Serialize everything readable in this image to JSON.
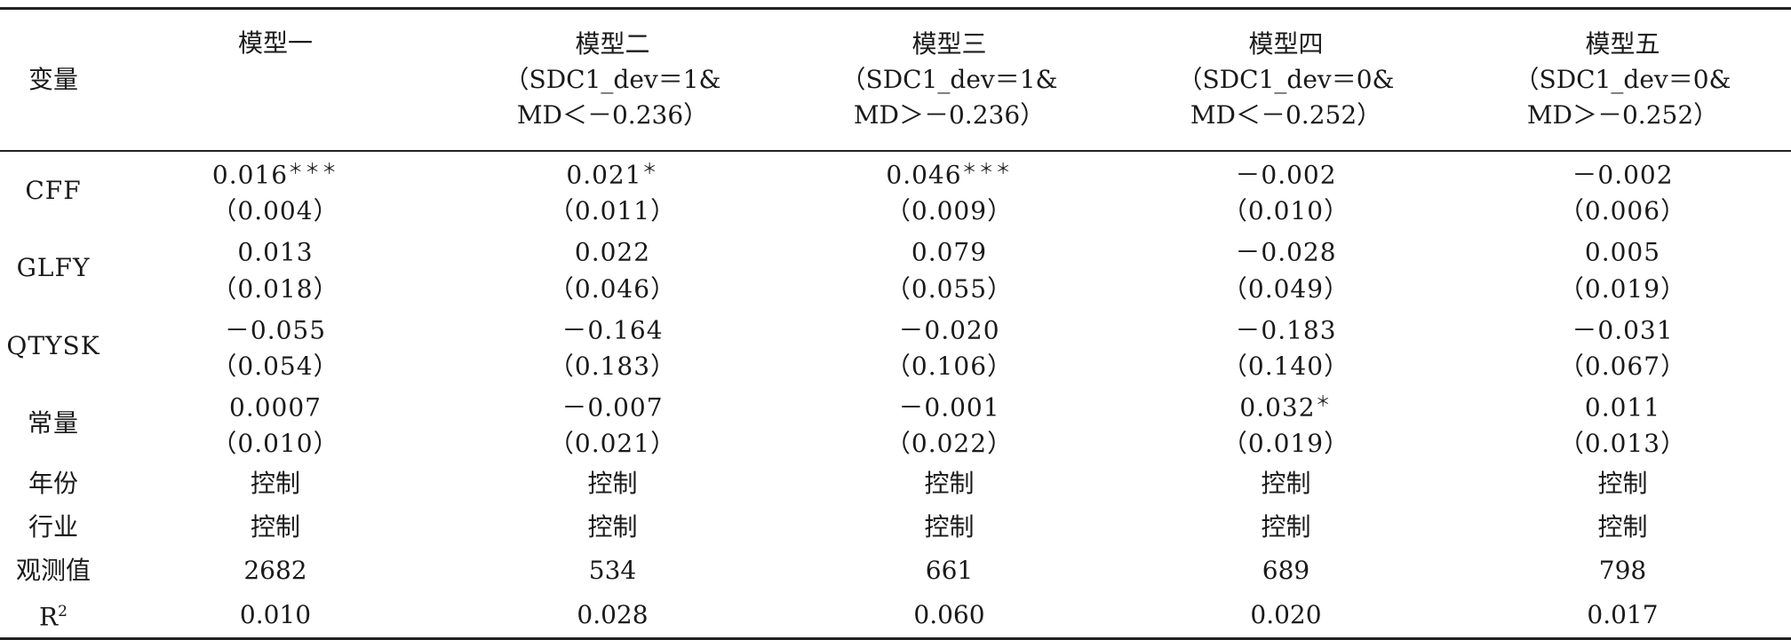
{
  "table": {
    "header": {
      "variable_label": "变量",
      "models": [
        {
          "line1": "模型一",
          "line2": "",
          "line3": ""
        },
        {
          "line1": "模型二",
          "line2": "（SDC1_dev＝1&",
          "line3": "MD＜－0.236）"
        },
        {
          "line1": "模型三",
          "line2": "（SDC1_dev＝1&",
          "line3": "MD＞－0.236）"
        },
        {
          "line1": "模型四",
          "line2": "（SDC1_dev＝0&",
          "line3": "MD＜－0.252）"
        },
        {
          "line1": "模型五",
          "line2": "（SDC1_dev＝0&",
          "line3": "MD＞－0.252）"
        }
      ]
    },
    "variables": [
      {
        "name": "CFF",
        "coefs": [
          {
            "v": "0.016",
            "sig": "＊＊＊"
          },
          {
            "v": "0.021",
            "sig": "＊"
          },
          {
            "v": "0.046",
            "sig": "＊＊＊"
          },
          {
            "v": "－0.002",
            "sig": ""
          },
          {
            "v": "－0.002",
            "sig": ""
          }
        ],
        "ses": [
          "（0.004）",
          "（0.011）",
          "（0.009）",
          "（0.010）",
          "（0.006）"
        ]
      },
      {
        "name": "GLFY",
        "coefs": [
          {
            "v": "0.013",
            "sig": ""
          },
          {
            "v": "0.022",
            "sig": ""
          },
          {
            "v": "0.079",
            "sig": ""
          },
          {
            "v": "－0.028",
            "sig": ""
          },
          {
            "v": "0.005",
            "sig": ""
          }
        ],
        "ses": [
          "（0.018）",
          "（0.046）",
          "（0.055）",
          "（0.049）",
          "（0.019）"
        ]
      },
      {
        "name": "QTYSK",
        "coefs": [
          {
            "v": "－0.055",
            "sig": ""
          },
          {
            "v": "－0.164",
            "sig": ""
          },
          {
            "v": "－0.020",
            "sig": ""
          },
          {
            "v": "－0.183",
            "sig": ""
          },
          {
            "v": "－0.031",
            "sig": ""
          }
        ],
        "ses": [
          "（0.054）",
          "（0.183）",
          "（0.106）",
          "（0.140）",
          "（0.067）"
        ]
      },
      {
        "name": "常量",
        "coefs": [
          {
            "v": "0.0007",
            "sig": ""
          },
          {
            "v": "－0.007",
            "sig": ""
          },
          {
            "v": "－0.001",
            "sig": ""
          },
          {
            "v": "0.032",
            "sig": "＊"
          },
          {
            "v": "0.011",
            "sig": ""
          }
        ],
        "ses": [
          "（0.010）",
          "（0.021）",
          "（0.022）",
          "（0.019）",
          "（0.013）"
        ]
      }
    ],
    "controls": [
      {
        "name": "年份",
        "values": [
          "控制",
          "控制",
          "控制",
          "控制",
          "控制"
        ]
      },
      {
        "name": "行业",
        "values": [
          "控制",
          "控制",
          "控制",
          "控制",
          "控制"
        ]
      }
    ],
    "observations": {
      "name": "观测值",
      "values": [
        "2682",
        "534",
        "661",
        "689",
        "798"
      ]
    },
    "r2": {
      "name": "R",
      "sup": "2",
      "values": [
        "0.010",
        "0.028",
        "0.060",
        "0.020",
        "0.017"
      ]
    }
  }
}
